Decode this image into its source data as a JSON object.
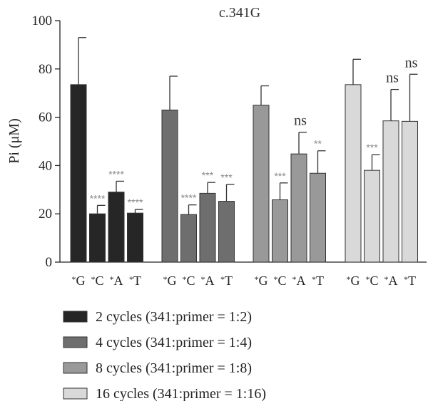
{
  "chart_data": {
    "type": "bar",
    "title": "c.341G",
    "ylabel": "Pi (μM)",
    "xlabel": "",
    "ylim": [
      0,
      100
    ],
    "yticks": [
      "0",
      "20",
      "40",
      "60",
      "80",
      "100"
    ],
    "categories": [
      "*G",
      "*C",
      "*A",
      "*T"
    ],
    "grid": false,
    "legend_position": "bottom",
    "series": [
      {
        "name": "2 cycles (341:primer = 1:2)",
        "color": "#262626",
        "values": [
          73.5,
          20,
          29,
          20.3
        ],
        "errors": [
          19.5,
          3.5,
          4.5,
          1.5
        ],
        "annotations": [
          "",
          "****",
          "****",
          "****"
        ]
      },
      {
        "name": "4 cycles (341:primer = 1:4)",
        "color": "#6e6e6e",
        "values": [
          63,
          19.7,
          28.5,
          25.2
        ],
        "errors": [
          14,
          4,
          4.5,
          7
        ],
        "annotations": [
          "",
          "****",
          "***",
          "***"
        ]
      },
      {
        "name": "8 cycles (341:primer = 1:8)",
        "color": "#999999",
        "values": [
          65,
          25.8,
          44.8,
          36.8
        ],
        "errors": [
          8,
          7,
          9,
          9.3
        ],
        "annotations": [
          "",
          "***",
          "ns",
          "**"
        ]
      },
      {
        "name": "16 cycles (341:primer = 1:16)",
        "color": "#d9d9d9",
        "values": [
          73.5,
          38,
          58.5,
          58.3
        ],
        "errors": [
          10.5,
          6.5,
          13,
          19.5
        ],
        "annotations": [
          "",
          "***",
          "ns",
          "ns"
        ]
      }
    ]
  }
}
